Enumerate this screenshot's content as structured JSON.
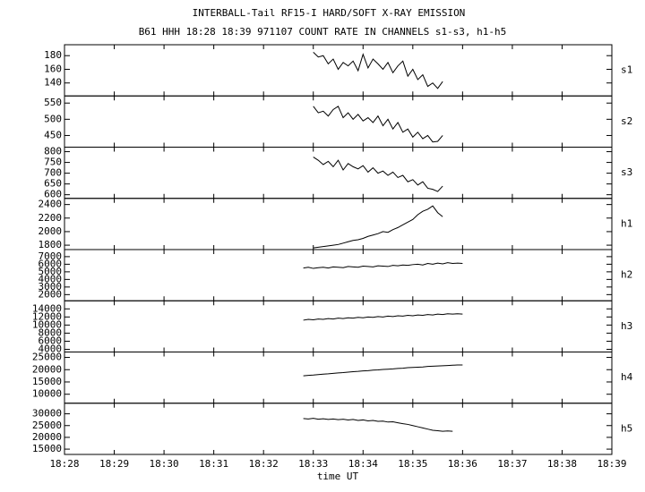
{
  "chart_data": [
    {
      "type": "line",
      "title": "INTERBALL-Tail RF15-I HARD/SOFT X-RAY EMISSION",
      "subtitle": "B61 HHH 18:28 18:39 971107  COUNT RATE IN CHANNELS s1-s3, h1-h5",
      "x": [
        1113.0,
        1113.1,
        1113.2,
        1113.3,
        1113.4,
        1113.5,
        1113.6,
        1113.7,
        1113.8,
        1113.9,
        1114.0,
        1114.1,
        1114.2,
        1114.3,
        1114.4,
        1114.5,
        1114.6,
        1114.7,
        1114.8,
        1114.9,
        1115.0,
        1115.1,
        1115.2,
        1115.3,
        1115.4,
        1115.5,
        1115.6
      ],
      "series": [
        {
          "name": "s1",
          "color": "#000000",
          "values": [
            185,
            178,
            180,
            168,
            175,
            160,
            170,
            165,
            172,
            158,
            182,
            162,
            175,
            168,
            160,
            170,
            155,
            165,
            172,
            150,
            160,
            145,
            152,
            135,
            140,
            132,
            142
          ]
        }
      ],
      "ylim": [
        121,
        196
      ],
      "yticks": [
        140,
        160,
        180
      ]
    },
    {
      "type": "line",
      "x": [
        1113.0,
        1113.1,
        1113.2,
        1113.3,
        1113.4,
        1113.5,
        1113.6,
        1113.7,
        1113.8,
        1113.9,
        1114.0,
        1114.1,
        1114.2,
        1114.3,
        1114.4,
        1114.5,
        1114.6,
        1114.7,
        1114.8,
        1114.9,
        1115.0,
        1115.1,
        1115.2,
        1115.3,
        1115.4,
        1115.5,
        1115.6
      ],
      "series": [
        {
          "name": "s2",
          "color": "#000000",
          "values": [
            540,
            520,
            525,
            510,
            530,
            540,
            505,
            520,
            500,
            515,
            495,
            505,
            490,
            510,
            480,
            500,
            470,
            490,
            460,
            470,
            445,
            460,
            440,
            450,
            430,
            432,
            450
          ]
        }
      ],
      "ylim": [
        414,
        572
      ],
      "yticks": [
        450,
        500,
        550
      ]
    },
    {
      "type": "line",
      "x": [
        1113.0,
        1113.1,
        1113.2,
        1113.3,
        1113.4,
        1113.5,
        1113.6,
        1113.7,
        1113.8,
        1113.9,
        1114.0,
        1114.1,
        1114.2,
        1114.3,
        1114.4,
        1114.5,
        1114.6,
        1114.7,
        1114.8,
        1114.9,
        1115.0,
        1115.1,
        1115.2,
        1115.3,
        1115.4,
        1115.5,
        1115.6
      ],
      "series": [
        {
          "name": "s3",
          "color": "#000000",
          "values": [
            775,
            760,
            740,
            755,
            730,
            760,
            715,
            745,
            730,
            720,
            735,
            705,
            725,
            700,
            710,
            690,
            705,
            680,
            690,
            660,
            670,
            645,
            660,
            630,
            625,
            615,
            640
          ]
        }
      ],
      "ylim": [
        583,
        821
      ],
      "yticks": [
        600,
        650,
        700,
        750,
        800
      ]
    },
    {
      "type": "line",
      "x": [
        1113.0,
        1113.1,
        1113.2,
        1113.3,
        1113.4,
        1113.5,
        1113.6,
        1113.7,
        1113.8,
        1113.9,
        1114.0,
        1114.1,
        1114.2,
        1114.3,
        1114.4,
        1114.5,
        1114.6,
        1114.7,
        1114.8,
        1114.9,
        1115.0,
        1115.1,
        1115.2,
        1115.3,
        1115.4,
        1115.5,
        1115.6
      ],
      "series": [
        {
          "name": "h1",
          "color": "#000000",
          "values": [
            1760,
            1770,
            1780,
            1790,
            1800,
            1810,
            1830,
            1850,
            1870,
            1880,
            1900,
            1930,
            1950,
            1970,
            2000,
            1990,
            2030,
            2060,
            2100,
            2140,
            2180,
            2250,
            2300,
            2330,
            2380,
            2280,
            2220
          ]
        }
      ],
      "ylim": [
        1735,
        2491
      ],
      "yticks": [
        1800,
        2000,
        2200,
        2400
      ]
    },
    {
      "type": "line",
      "x": [
        1112.8,
        1112.9,
        1113.0,
        1113.1,
        1113.2,
        1113.3,
        1113.4,
        1113.5,
        1113.6,
        1113.7,
        1113.8,
        1113.9,
        1114.0,
        1114.1,
        1114.2,
        1114.3,
        1114.4,
        1114.5,
        1114.6,
        1114.7,
        1114.8,
        1114.9,
        1115.0,
        1115.1,
        1115.2,
        1115.3,
        1115.4,
        1115.5,
        1115.6,
        1115.7,
        1115.8,
        1115.9,
        1116.0
      ],
      "series": [
        {
          "name": "h2",
          "color": "#000000",
          "values": [
            5500,
            5600,
            5450,
            5550,
            5600,
            5500,
            5650,
            5600,
            5550,
            5700,
            5650,
            5600,
            5750,
            5700,
            5650,
            5800,
            5750,
            5700,
            5850,
            5800,
            5900,
            5850,
            5950,
            6000,
            5900,
            6100,
            6000,
            6150,
            6050,
            6200,
            6100,
            6150,
            6100
          ]
        }
      ],
      "ylim": [
        1186,
        7930
      ],
      "yticks": [
        2000,
        3000,
        4000,
        5000,
        6000,
        7000
      ]
    },
    {
      "type": "line",
      "x": [
        1112.8,
        1112.9,
        1113.0,
        1113.1,
        1113.2,
        1113.3,
        1113.4,
        1113.5,
        1113.6,
        1113.7,
        1113.8,
        1113.9,
        1114.0,
        1114.1,
        1114.2,
        1114.3,
        1114.4,
        1114.5,
        1114.6,
        1114.7,
        1114.8,
        1114.9,
        1115.0,
        1115.1,
        1115.2,
        1115.3,
        1115.4,
        1115.5,
        1115.6,
        1115.7,
        1115.8,
        1115.9,
        1116.0
      ],
      "series": [
        {
          "name": "h3",
          "color": "#000000",
          "values": [
            11200,
            11400,
            11300,
            11500,
            11400,
            11600,
            11500,
            11700,
            11600,
            11800,
            11700,
            11900,
            11800,
            12000,
            11900,
            12100,
            12000,
            12200,
            12100,
            12300,
            12200,
            12400,
            12300,
            12500,
            12400,
            12600,
            12500,
            12700,
            12600,
            12800,
            12700,
            12800,
            12700
          ]
        }
      ],
      "ylim": [
        3333,
        16000
      ],
      "yticks": [
        4000,
        6000,
        8000,
        10000,
        12000,
        14000
      ]
    },
    {
      "type": "line",
      "x": [
        1112.8,
        1112.9,
        1113.0,
        1113.1,
        1113.2,
        1113.3,
        1113.4,
        1113.5,
        1113.6,
        1113.7,
        1113.8,
        1113.9,
        1114.0,
        1114.1,
        1114.2,
        1114.3,
        1114.4,
        1114.5,
        1114.6,
        1114.7,
        1114.8,
        1114.9,
        1115.0,
        1115.1,
        1115.2,
        1115.3,
        1115.4,
        1115.5,
        1115.6,
        1115.7,
        1115.8,
        1115.9,
        1116.0
      ],
      "series": [
        {
          "name": "h4",
          "color": "#000000",
          "values": [
            17500,
            17700,
            17800,
            18000,
            18200,
            18300,
            18500,
            18700,
            18800,
            19000,
            19200,
            19300,
            19500,
            19600,
            19800,
            19900,
            20100,
            20200,
            20300,
            20500,
            20600,
            20800,
            20900,
            21000,
            21100,
            21300,
            21400,
            21500,
            21600,
            21700,
            21800,
            21900,
            21900
          ]
        }
      ],
      "ylim": [
        6340,
        27195
      ],
      "yticks": [
        10000,
        15000,
        20000,
        25000
      ]
    },
    {
      "type": "line",
      "x": [
        1112.8,
        1112.9,
        1113.0,
        1113.1,
        1113.2,
        1113.3,
        1113.4,
        1113.5,
        1113.6,
        1113.7,
        1113.8,
        1113.9,
        1114.0,
        1114.1,
        1114.2,
        1114.3,
        1114.4,
        1114.5,
        1114.6,
        1114.7,
        1114.8,
        1114.9,
        1115.0,
        1115.1,
        1115.2,
        1115.3,
        1115.4,
        1115.5,
        1115.6,
        1115.7,
        1115.8
      ],
      "series": [
        {
          "name": "h5",
          "color": "#000000",
          "values": [
            28000,
            27800,
            28100,
            27700,
            27900,
            27600,
            27800,
            27500,
            27700,
            27400,
            27600,
            27200,
            27400,
            27000,
            27200,
            26800,
            26900,
            26500,
            26600,
            26200,
            25800,
            25500,
            25000,
            24500,
            24000,
            23500,
            23000,
            22800,
            22600,
            22700,
            22600
          ]
        }
      ],
      "ylim": [
        12750,
        34500
      ],
      "yticks": [
        15000,
        20000,
        25000,
        30000
      ],
      "x_label": "time UT",
      "xlim": [
        1108,
        1119
      ],
      "xticks": [
        {
          "value": 1108,
          "label": "18:28"
        },
        {
          "value": 1109,
          "label": "18:29"
        },
        {
          "value": 1110,
          "label": "18:30"
        },
        {
          "value": 1111,
          "label": "18:31"
        },
        {
          "value": 1112,
          "label": "18:32"
        },
        {
          "value": 1113,
          "label": "18:33"
        },
        {
          "value": 1114,
          "label": "18:34"
        },
        {
          "value": 1115,
          "label": "18:35"
        },
        {
          "value": 1116,
          "label": "18:36"
        },
        {
          "value": 1117,
          "label": "18:37"
        },
        {
          "value": 1118,
          "label": "18:38"
        },
        {
          "value": 1119,
          "label": "18:39"
        }
      ]
    }
  ]
}
